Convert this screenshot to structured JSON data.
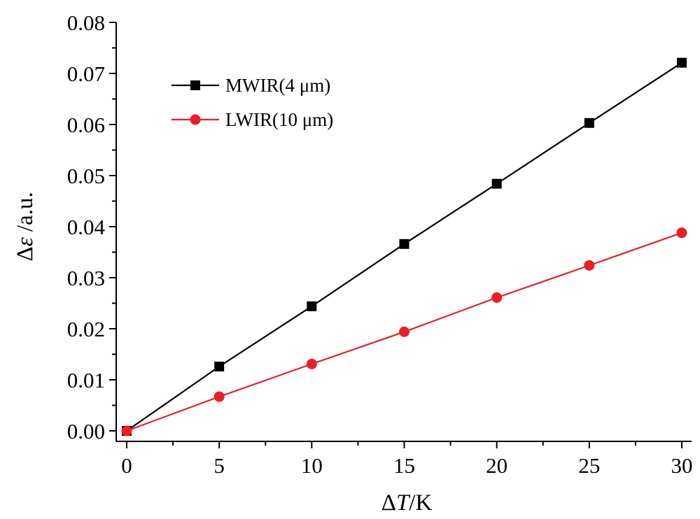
{
  "chart_data": {
    "type": "line",
    "xlabel": {
      "prefix": "Δ",
      "italic": "T",
      "suffix": "/K"
    },
    "ylabel": {
      "prefix": "Δ",
      "italic": "ε",
      "suffix": " /a.u."
    },
    "xlim": [
      0,
      30
    ],
    "ylim": [
      0,
      0.08
    ],
    "xticks": [
      0,
      5,
      10,
      15,
      20,
      25,
      30
    ],
    "yticks": [
      0.0,
      0.01,
      0.02,
      0.03,
      0.04,
      0.05,
      0.06,
      0.07,
      0.08
    ],
    "xtick_labels": [
      "0",
      "5",
      "10",
      "15",
      "20",
      "25",
      "30"
    ],
    "ytick_labels": [
      "0.00",
      "0.01",
      "0.02",
      "0.03",
      "0.04",
      "0.05",
      "0.06",
      "0.07",
      "0.08"
    ],
    "grid": false,
    "legend_position": "top-left",
    "x": [
      0,
      5,
      10,
      15,
      20,
      25,
      30
    ],
    "series": [
      {
        "name": "MWIR(4 μm)",
        "color": "#000000",
        "marker": "square",
        "values": [
          0.0,
          0.0126,
          0.0244,
          0.0366,
          0.0484,
          0.0603,
          0.0721
        ]
      },
      {
        "name": "LWIR(10 μm)",
        "color": "#ee1c25",
        "marker": "circle",
        "values": [
          0.0,
          0.0067,
          0.0131,
          0.0194,
          0.0261,
          0.0324,
          0.0388
        ]
      }
    ]
  }
}
